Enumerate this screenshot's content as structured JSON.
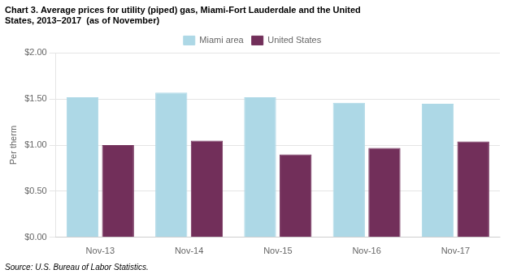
{
  "chart_data": {
    "type": "bar",
    "title": [
      "Chart 3. Average prices for utility (piped) gas, Miami-Fort Lauderdale and the United",
      "States, 2013–2017  (as of November)"
    ],
    "y_label": "Per therm",
    "annotation": "Source: U.S. Bureau of Labor Statistics.",
    "categories": [
      "Nov-13",
      "Nov-14",
      "Nov-15",
      "Nov-16",
      "Nov-17"
    ],
    "series": [
      {
        "name": "Miami area",
        "color": "#ADD8E6",
        "values": [
          1.52,
          1.57,
          1.52,
          1.46,
          1.45
        ]
      },
      {
        "name": "United States",
        "color": "#722F5A",
        "values": [
          1.0,
          1.05,
          0.9,
          0.97,
          1.04
        ]
      }
    ],
    "ylim": [
      0.0,
      2.0
    ],
    "yticks": [
      {
        "value": 0.0,
        "label": "$0.00"
      },
      {
        "value": 0.5,
        "label": "$0.50"
      },
      {
        "value": 1.0,
        "label": "$1.00"
      },
      {
        "value": 1.5,
        "label": "$1.50"
      },
      {
        "value": 2.0,
        "label": "$2.00"
      }
    ],
    "grid": true,
    "legend": "top"
  }
}
